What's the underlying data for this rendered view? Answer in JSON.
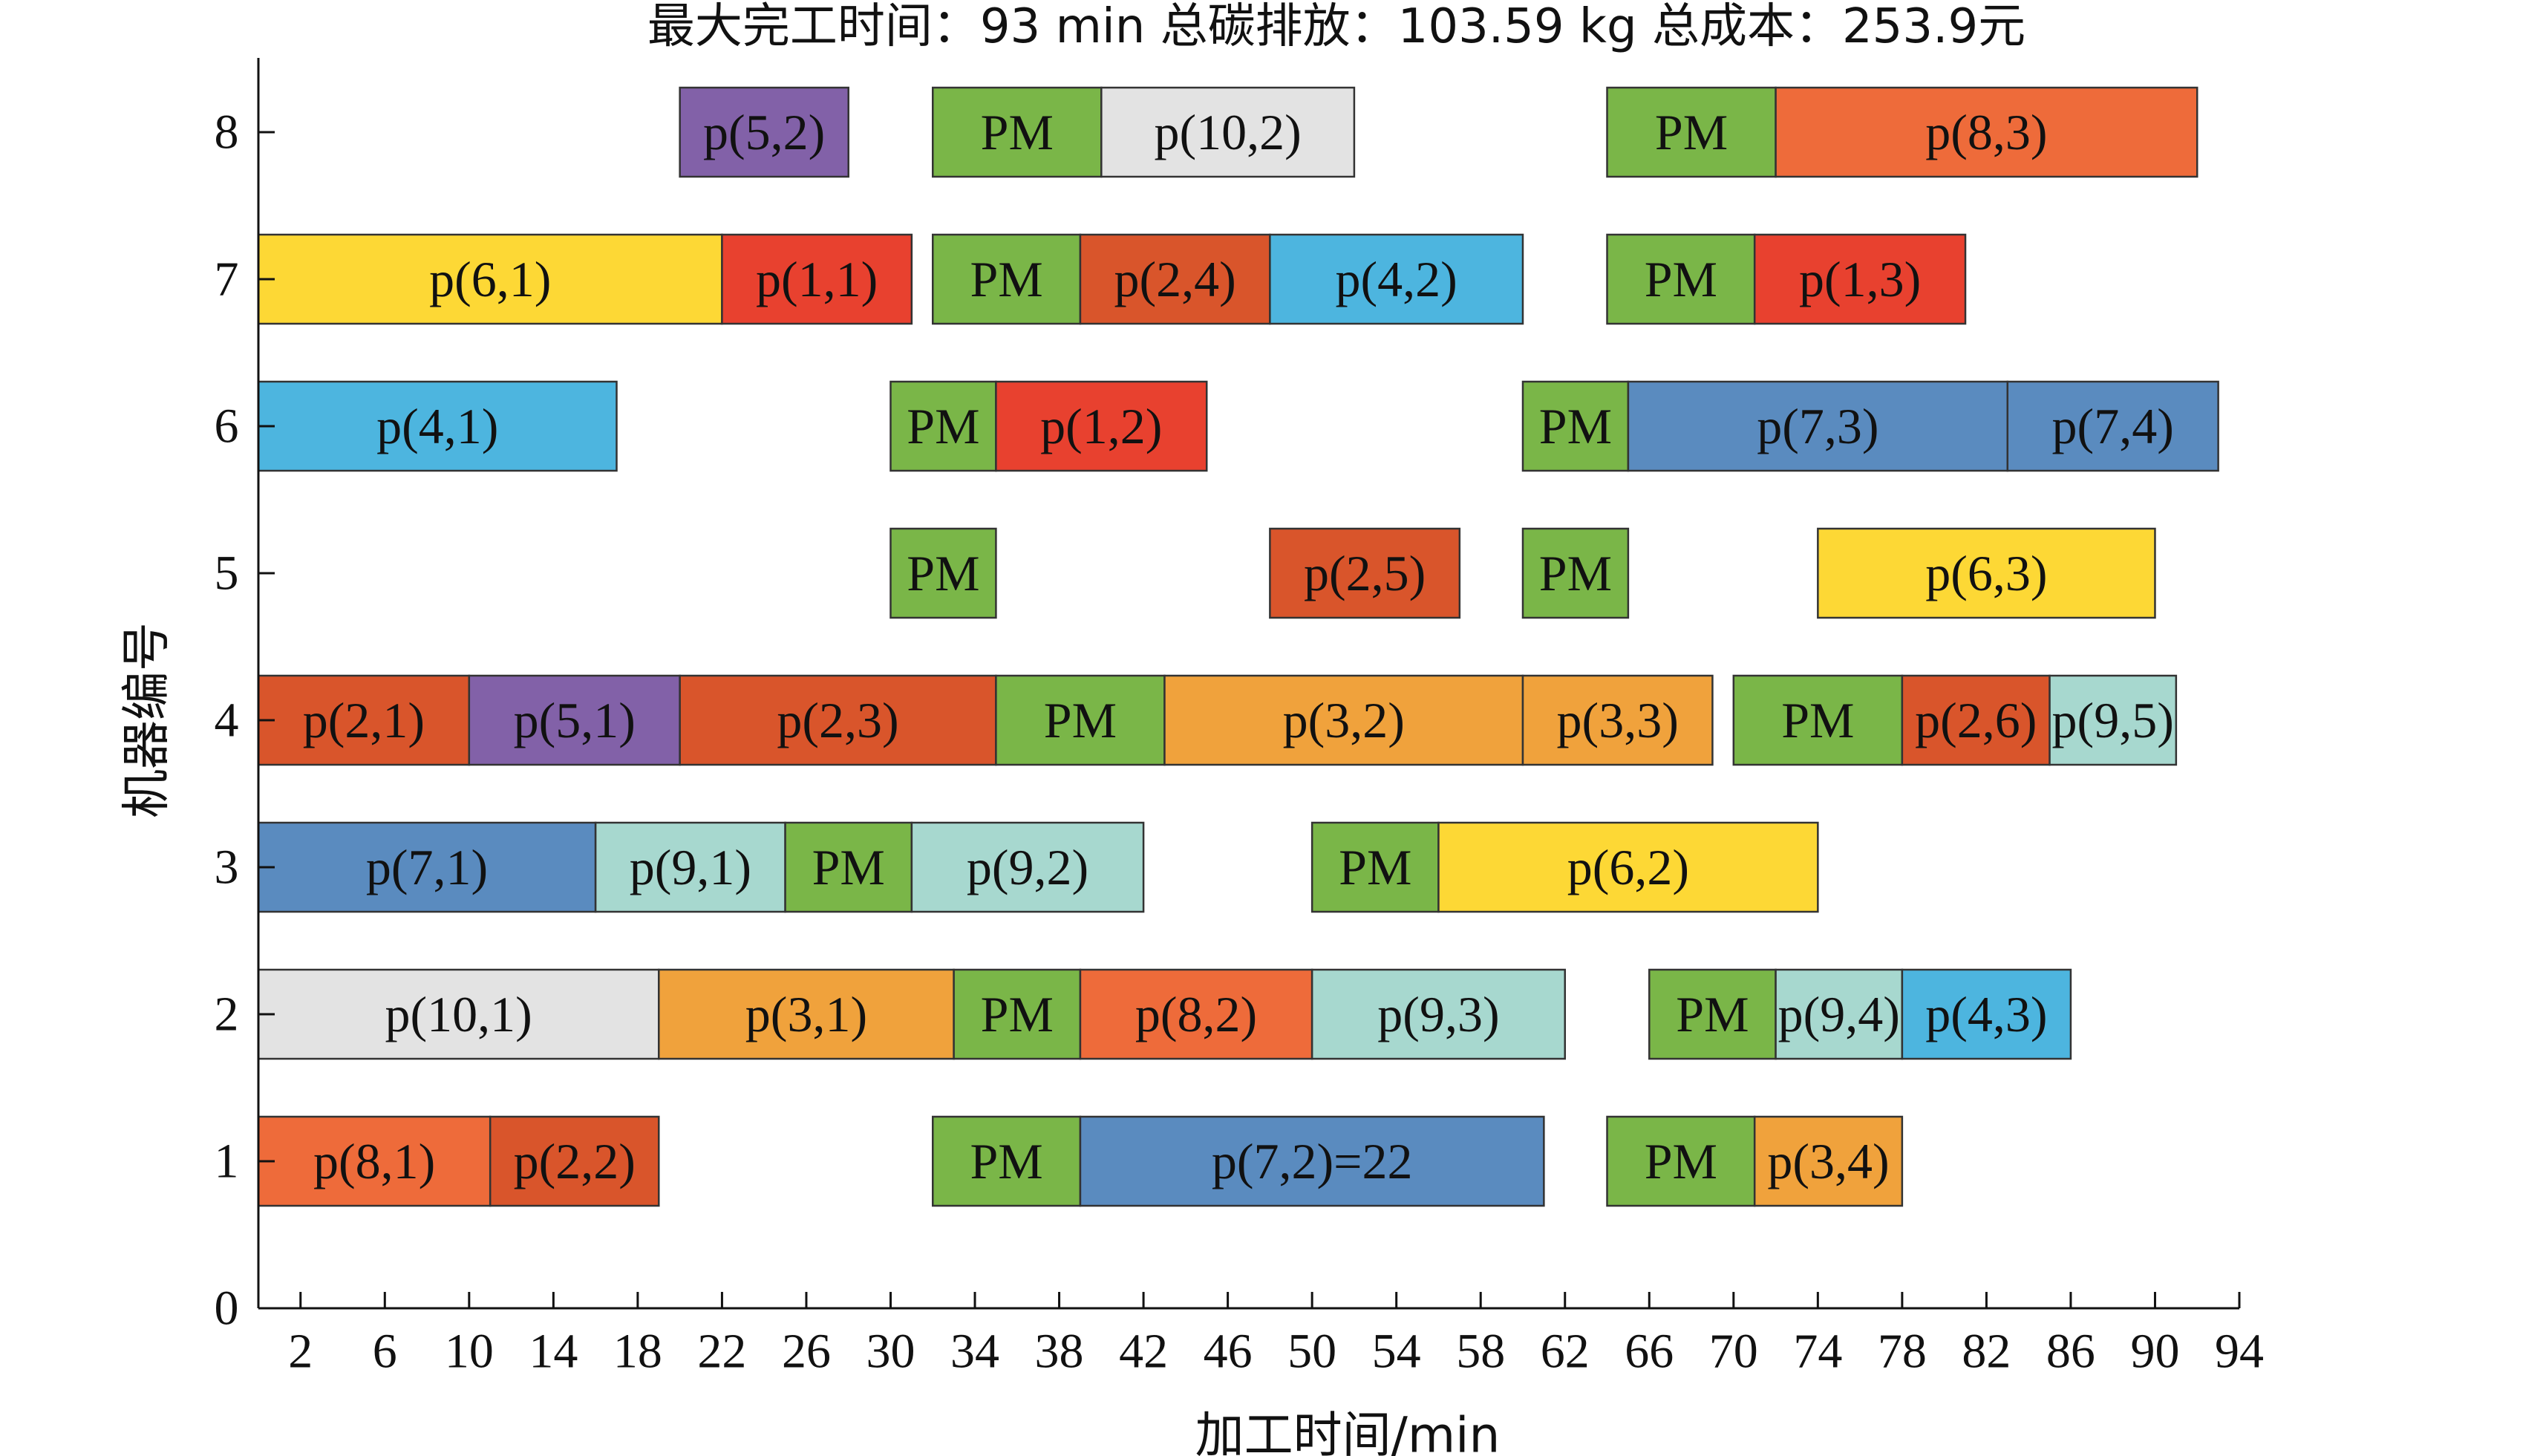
{
  "chart_data": {
    "type": "gantt",
    "title": "最大完工时间：93 min 总碳排放：103.59 kg 总成本：253.9元",
    "xlabel": "加工时间/min",
    "ylabel": "机器编号",
    "x_ticks": [
      2,
      6,
      10,
      14,
      18,
      22,
      26,
      30,
      34,
      38,
      42,
      46,
      50,
      54,
      58,
      62,
      66,
      70,
      74,
      78,
      82,
      86,
      90,
      94
    ],
    "y_ticks": [
      0,
      1,
      2,
      3,
      4,
      5,
      6,
      7,
      8
    ],
    "grid": false,
    "legend": "none",
    "colors": {
      "PM": "#7ab648",
      "p(1,*)": "#e8412f",
      "p(2,*)": "#d9552b",
      "p(3,*)": "#f0a23c",
      "p(4,*)": "#4db5df",
      "p(5,*)": "#8261a8",
      "p(6,*)": "#fdd835",
      "p(7,*)": "#5a8bbf",
      "p(8,*)": "#ee6b3a",
      "p(9,*)": "#a7d8cf",
      "p(10,*)": "#e3e3e3"
    },
    "bars": [
      {
        "machine": 8,
        "start": 20,
        "end": 28,
        "label": "p(5,2)",
        "color": "#8261a8"
      },
      {
        "machine": 8,
        "start": 32,
        "end": 40,
        "label": "PM",
        "color": "#7ab648"
      },
      {
        "machine": 8,
        "start": 40,
        "end": 52,
        "label": "p(10,2)",
        "color": "#e3e3e3"
      },
      {
        "machine": 8,
        "start": 64,
        "end": 72,
        "label": "PM",
        "color": "#7ab648"
      },
      {
        "machine": 8,
        "start": 72,
        "end": 92,
        "label": "p(8,3)",
        "color": "#ee6b3a"
      },
      {
        "machine": 7,
        "start": 0,
        "end": 22,
        "label": "p(6,1)",
        "color": "#fdd835"
      },
      {
        "machine": 7,
        "start": 22,
        "end": 31,
        "label": "p(1,1)",
        "color": "#e8412f"
      },
      {
        "machine": 7,
        "start": 32,
        "end": 39,
        "label": "PM",
        "color": "#7ab648"
      },
      {
        "machine": 7,
        "start": 39,
        "end": 48,
        "label": "p(2,4)",
        "color": "#d9552b"
      },
      {
        "machine": 7,
        "start": 48,
        "end": 60,
        "label": "p(4,2)",
        "color": "#4db5df"
      },
      {
        "machine": 7,
        "start": 64,
        "end": 71,
        "label": "PM",
        "color": "#7ab648"
      },
      {
        "machine": 7,
        "start": 71,
        "end": 81,
        "label": "p(1,3)",
        "color": "#e8412f"
      },
      {
        "machine": 6,
        "start": 0,
        "end": 17,
        "label": "p(4,1)",
        "color": "#4db5df"
      },
      {
        "machine": 6,
        "start": 30,
        "end": 35,
        "label": "PM",
        "color": "#7ab648"
      },
      {
        "machine": 6,
        "start": 35,
        "end": 45,
        "label": "p(1,2)",
        "color": "#e8412f"
      },
      {
        "machine": 6,
        "start": 60,
        "end": 65,
        "label": "PM",
        "color": "#7ab648"
      },
      {
        "machine": 6,
        "start": 65,
        "end": 83,
        "label": "p(7,3)",
        "color": "#5a8bbf"
      },
      {
        "machine": 6,
        "start": 83,
        "end": 93,
        "label": "p(7,4)",
        "color": "#5a8bbf"
      },
      {
        "machine": 5,
        "start": 30,
        "end": 35,
        "label": "PM",
        "color": "#7ab648"
      },
      {
        "machine": 5,
        "start": 48,
        "end": 57,
        "label": "p(2,5)",
        "color": "#d9552b"
      },
      {
        "machine": 5,
        "start": 60,
        "end": 65,
        "label": "PM",
        "color": "#7ab648"
      },
      {
        "machine": 5,
        "start": 74,
        "end": 90,
        "label": "p(6,3)",
        "color": "#fdd835"
      },
      {
        "machine": 4,
        "start": 0,
        "end": 10,
        "label": "p(2,1)",
        "color": "#d9552b"
      },
      {
        "machine": 4,
        "start": 10,
        "end": 20,
        "label": "p(5,1)",
        "color": "#8261a8"
      },
      {
        "machine": 4,
        "start": 20,
        "end": 35,
        "label": "p(2,3)",
        "color": "#d9552b"
      },
      {
        "machine": 4,
        "start": 35,
        "end": 43,
        "label": "PM",
        "color": "#7ab648"
      },
      {
        "machine": 4,
        "start": 43,
        "end": 60,
        "label": "p(3,2)",
        "color": "#f0a23c"
      },
      {
        "machine": 4,
        "start": 60,
        "end": 69,
        "label": "p(3,3)",
        "color": "#f0a23c"
      },
      {
        "machine": 4,
        "start": 70,
        "end": 78,
        "label": "PM",
        "color": "#7ab648"
      },
      {
        "machine": 4,
        "start": 78,
        "end": 85,
        "label": "p(2,6)",
        "color": "#d9552b"
      },
      {
        "machine": 4,
        "start": 85,
        "end": 91,
        "label": "p(9,5)",
        "color": "#a7d8cf"
      },
      {
        "machine": 3,
        "start": 0,
        "end": 16,
        "label": "p(7,1)",
        "color": "#5a8bbf"
      },
      {
        "machine": 3,
        "start": 16,
        "end": 25,
        "label": "p(9,1)",
        "color": "#a7d8cf"
      },
      {
        "machine": 3,
        "start": 25,
        "end": 31,
        "label": "PM",
        "color": "#7ab648"
      },
      {
        "machine": 3,
        "start": 31,
        "end": 42,
        "label": "p(9,2)",
        "color": "#a7d8cf"
      },
      {
        "machine": 3,
        "start": 50,
        "end": 56,
        "label": "PM",
        "color": "#7ab648"
      },
      {
        "machine": 3,
        "start": 56,
        "end": 74,
        "label": "p(6,2)",
        "color": "#fdd835"
      },
      {
        "machine": 2,
        "start": 0,
        "end": 19,
        "label": "p(10,1)",
        "color": "#e3e3e3"
      },
      {
        "machine": 2,
        "start": 19,
        "end": 33,
        "label": "p(3,1)",
        "color": "#f0a23c"
      },
      {
        "machine": 2,
        "start": 33,
        "end": 39,
        "label": "PM",
        "color": "#7ab648"
      },
      {
        "machine": 2,
        "start": 39,
        "end": 50,
        "label": "p(8,2)",
        "color": "#ee6b3a"
      },
      {
        "machine": 2,
        "start": 50,
        "end": 62,
        "label": "p(9,3)",
        "color": "#a7d8cf"
      },
      {
        "machine": 2,
        "start": 66,
        "end": 72,
        "label": "PM",
        "color": "#7ab648"
      },
      {
        "machine": 2,
        "start": 72,
        "end": 78,
        "label": "p(9,4)",
        "color": "#a7d8cf"
      },
      {
        "machine": 2,
        "start": 78,
        "end": 86,
        "label": "p(4,3)",
        "color": "#4db5df"
      },
      {
        "machine": 1,
        "start": 0,
        "end": 11,
        "label": "p(8,1)",
        "color": "#ee6b3a"
      },
      {
        "machine": 1,
        "start": 11,
        "end": 19,
        "label": "p(2,2)",
        "color": "#d9552b"
      },
      {
        "machine": 1,
        "start": 32,
        "end": 39,
        "label": "PM",
        "color": "#7ab648"
      },
      {
        "machine": 1,
        "start": 39,
        "end": 61,
        "label": "p(7,2)=22",
        "color": "#5a8bbf"
      },
      {
        "machine": 1,
        "start": 64,
        "end": 71,
        "label": "PM",
        "color": "#7ab648"
      },
      {
        "machine": 1,
        "start": 71,
        "end": 78,
        "label": "p(3,4)",
        "color": "#f0a23c"
      }
    ]
  }
}
